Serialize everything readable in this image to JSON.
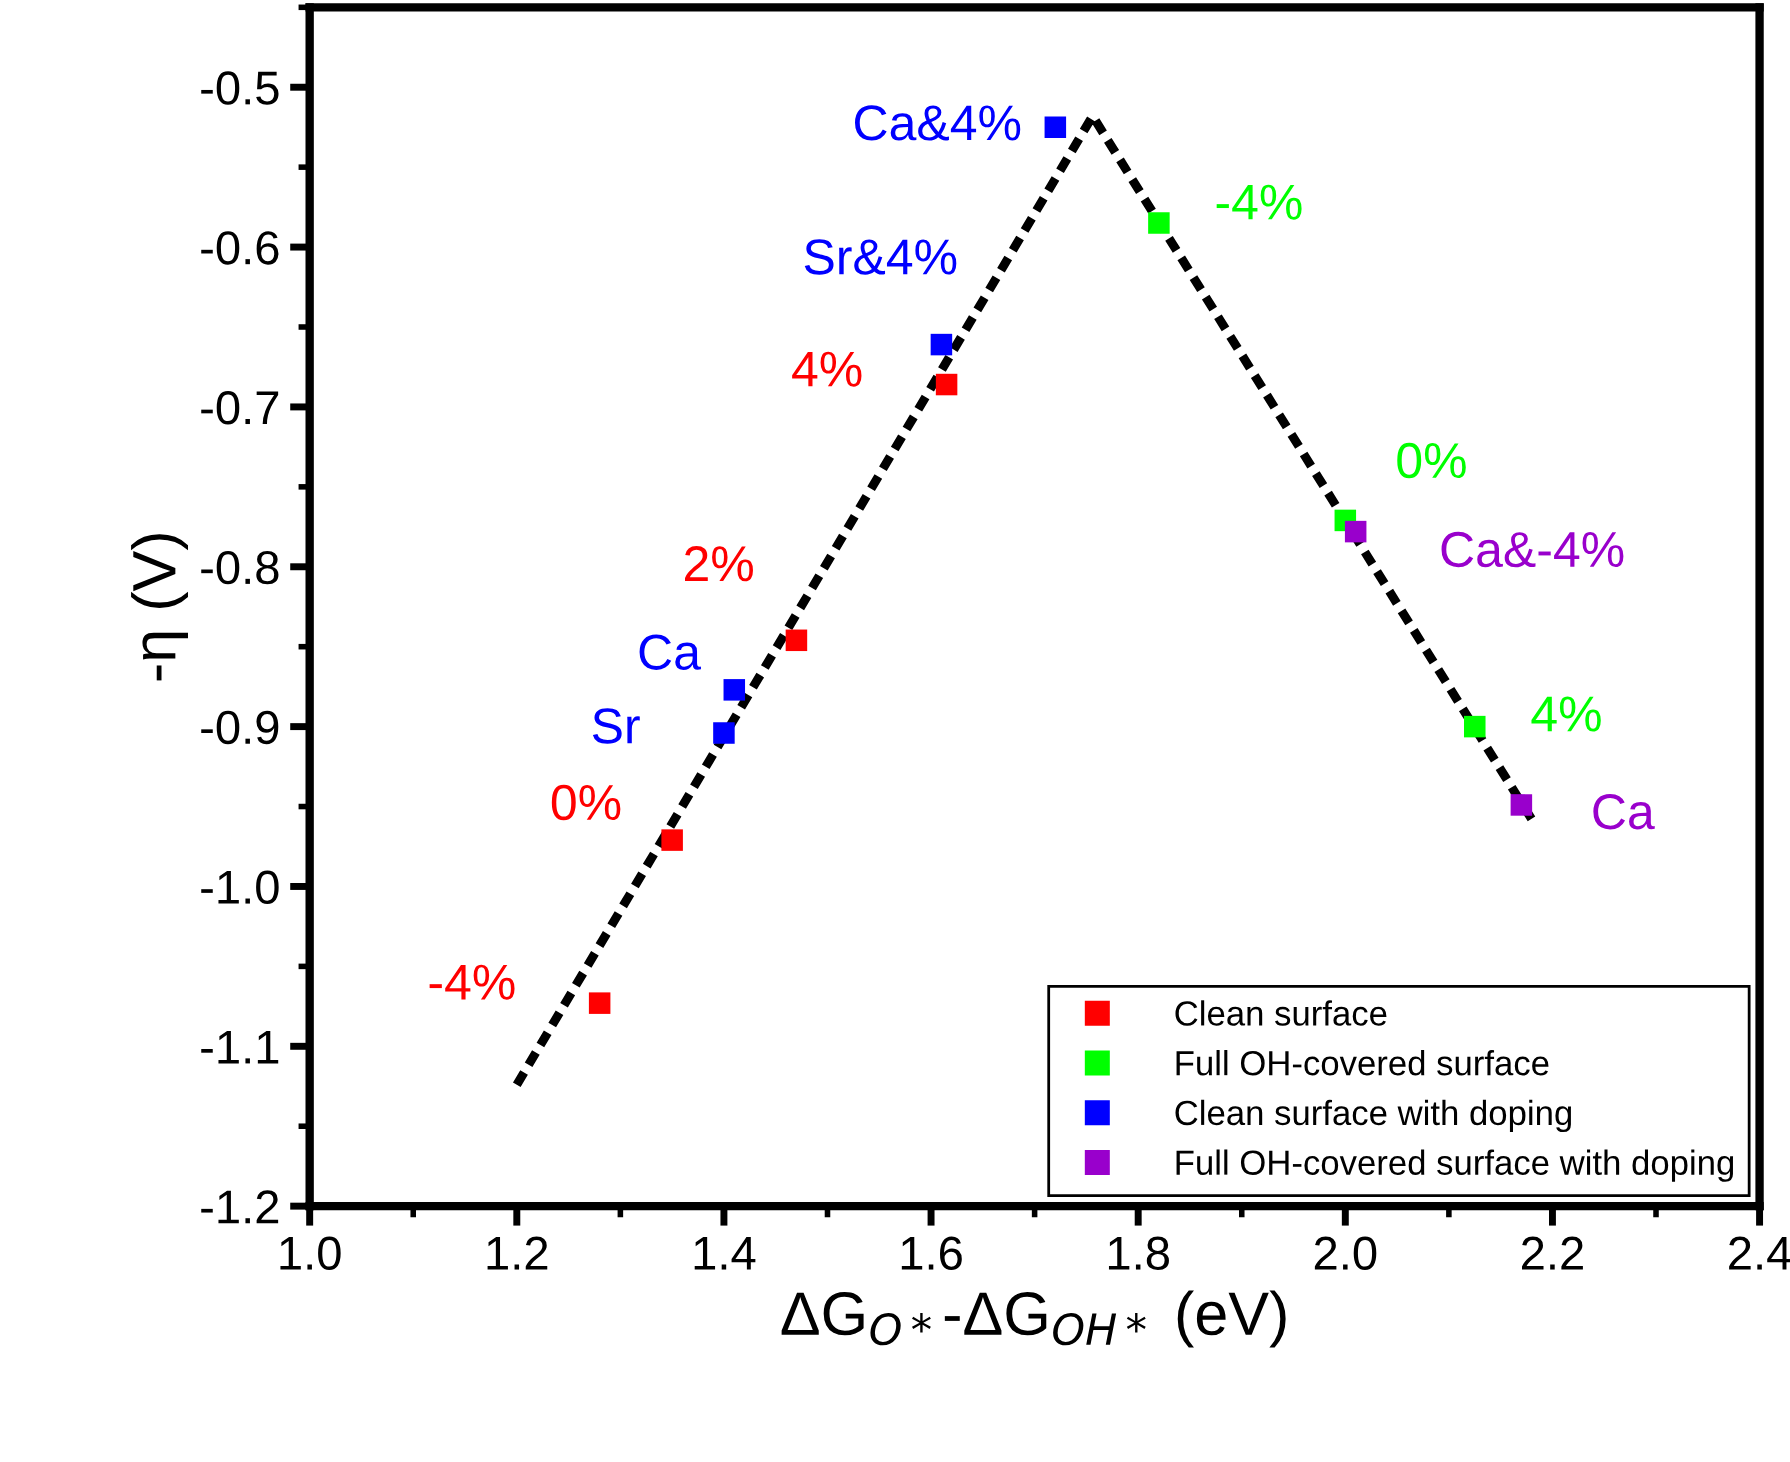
{
  "chart_data": {
    "type": "scatter",
    "xlabel": "ΔG$_{O*}$-ΔG$_{OH*}$ (eV)",
    "ylabel": "-η (V)",
    "xlim": [
      1.0,
      2.4
    ],
    "ylim": [
      -1.2,
      -0.45
    ],
    "xticks": [
      {
        "value": 1.0,
        "label": "1.0"
      },
      1.2,
      1.4,
      1.6,
      1.8,
      {
        "value": 2.0,
        "label": "2.0"
      },
      2.2,
      2.4
    ],
    "yticks": [
      -1.2,
      -1.1,
      {
        "value": -1.0,
        "label": "-1.0"
      },
      -0.9,
      -0.8,
      -0.7,
      -0.6,
      -0.5
    ],
    "grid": false,
    "legend": "bottom right",
    "marker": "square",
    "series": [
      {
        "type": "line",
        "color": "#000000",
        "line_style": "dashed",
        "marker": "none",
        "x": [
          1.2,
          1.756,
          2.18
        ],
        "values": [
          -1.124,
          -0.518,
          -0.958
        ]
      },
      {
        "name": "Clean surface",
        "color": "#ff0000",
        "x": [
          1.28,
          1.35,
          1.47,
          1.615
        ],
        "values": [
          -1.073,
          -0.971,
          -0.846,
          -0.686
        ]
      },
      {
        "name": "Full OH-covered surface",
        "color": "#00ff00",
        "x": [
          1.82,
          2.0,
          2.125
        ],
        "values": [
          -0.585,
          -0.771,
          -0.9
        ]
      },
      {
        "name": "Clean surface with doping",
        "color": "#0000ff",
        "x": [
          1.72,
          1.61,
          1.41,
          1.4
        ],
        "values": [
          -0.525,
          -0.661,
          -0.877,
          -0.904
        ]
      },
      {
        "name": "Full OH-covered surface with doping",
        "color": "#9900cc",
        "x": [
          2.01,
          2.17
        ],
        "values": [
          -0.778,
          -0.949
        ]
      }
    ],
    "annotations": [
      {
        "text": "-4%",
        "x": 1.28,
        "y": -1.073
      },
      {
        "text": "0%",
        "x": 1.35,
        "y": -0.971
      },
      {
        "text": "2%",
        "x": 1.47,
        "y": -0.846
      },
      {
        "text": "4%",
        "x": 1.615,
        "y": -0.686
      },
      {
        "text": "-4%",
        "x": 1.82,
        "y": -0.585
      },
      {
        "text": "0%",
        "x": 2.0,
        "y": -0.771
      },
      {
        "text": "4%",
        "x": 2.125,
        "y": -0.9
      },
      {
        "text": "Ca&4%",
        "x": 1.72,
        "y": -0.525
      },
      {
        "text": "Sr&4%",
        "x": 1.61,
        "y": -0.661
      },
      {
        "text": "Ca",
        "x": 1.41,
        "y": -0.877
      },
      {
        "text": "Sr",
        "x": 1.4,
        "y": -0.904
      },
      {
        "text": "Ca&-4%",
        "x": 2.01,
        "y": -0.778
      },
      {
        "text": "Ca",
        "x": 2.17,
        "y": -0.949
      }
    ]
  }
}
